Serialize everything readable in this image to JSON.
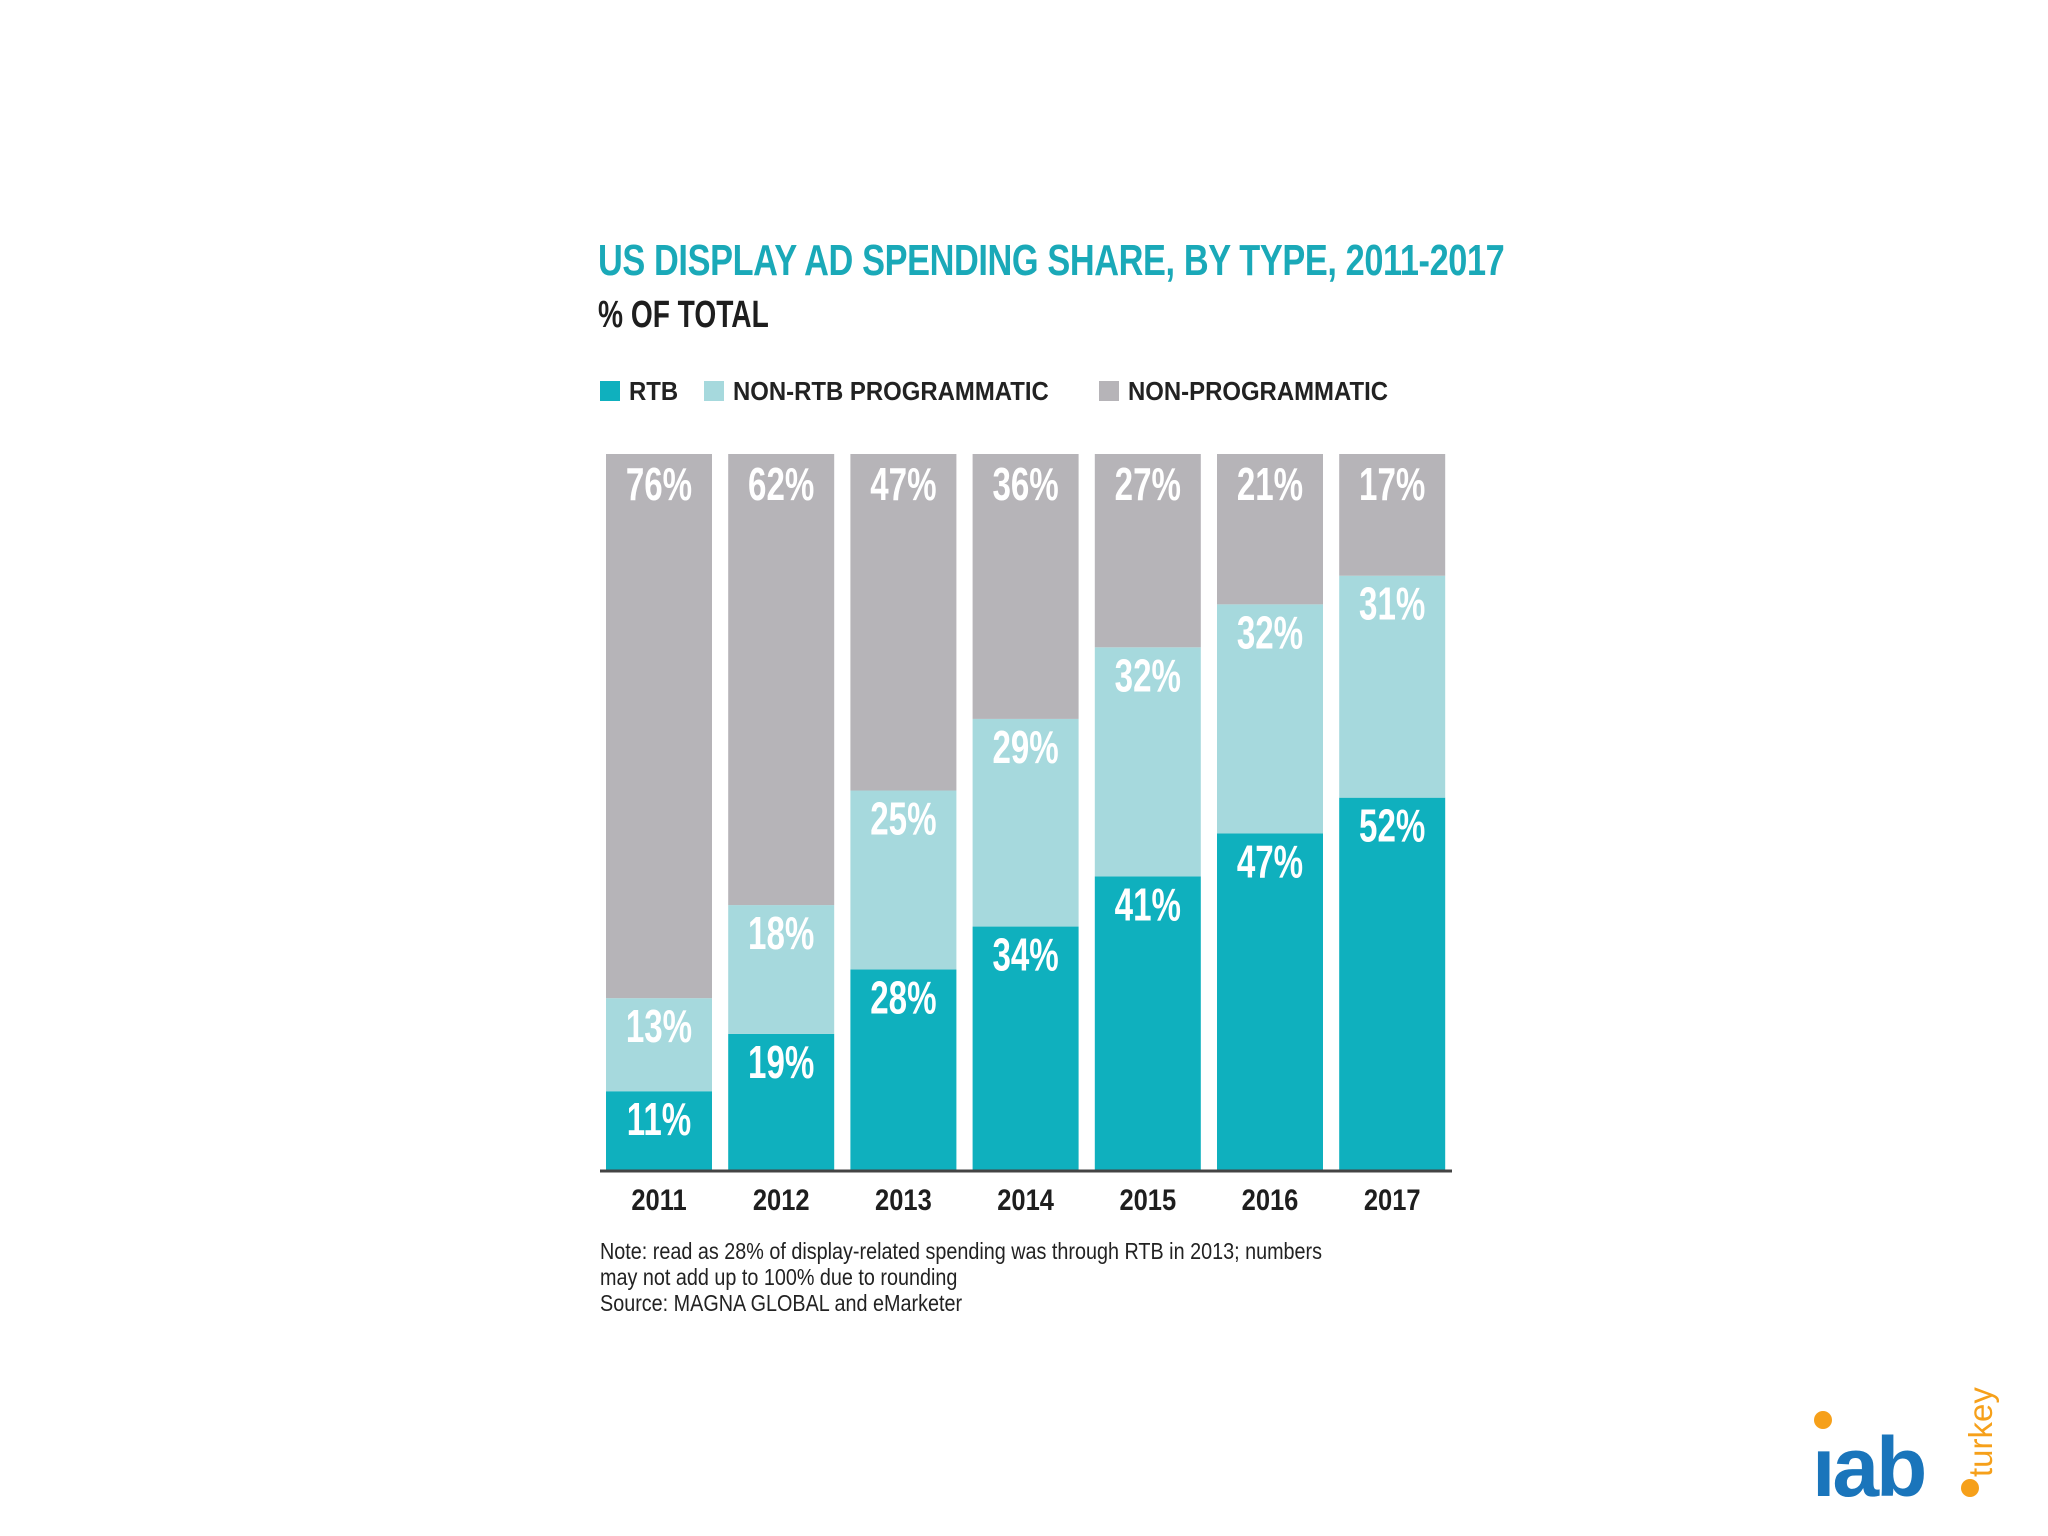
{
  "title": "US DISPLAY AD SPENDING SHARE, BY TYPE, 2011-2017",
  "subtitle": "% OF TOTAL",
  "legend": [
    {
      "label": "RTB",
      "color": "#0fb0be"
    },
    {
      "label": "NON-RTB PROGRAMMATIC",
      "color": "#a6d9dd"
    },
    {
      "label": "NON-PROGRAMMATIC",
      "color": "#b6b4b8"
    }
  ],
  "chart_data": {
    "type": "bar",
    "stacked": true,
    "categories": [
      "2011",
      "2012",
      "2013",
      "2014",
      "2015",
      "2016",
      "2017"
    ],
    "series": [
      {
        "name": "RTB",
        "color": "#0fb0be",
        "values": [
          11,
          19,
          28,
          34,
          41,
          47,
          52
        ],
        "labels": [
          "11%",
          "19%",
          "28%",
          "34%",
          "41%",
          "47%",
          "52%"
        ]
      },
      {
        "name": "NON-RTB PROGRAMMATIC",
        "color": "#a6d9dd",
        "values": [
          13,
          18,
          25,
          29,
          32,
          32,
          31
        ],
        "labels": [
          "13%",
          "18%",
          "25%",
          "29%",
          "32%",
          "32%",
          "31%"
        ]
      },
      {
        "name": "NON-PROGRAMMATIC",
        "color": "#b6b4b8",
        "values": [
          76,
          62,
          47,
          36,
          27,
          21,
          17
        ],
        "labels": [
          "76%",
          "62%",
          "47%",
          "36%",
          "27%",
          "21%",
          "17%"
        ]
      }
    ],
    "ylim": [
      0,
      100
    ],
    "xlabel": "",
    "ylabel": "",
    "grid": false,
    "legend_position": "top-left"
  },
  "note": {
    "line1": "Note: read as 28% of display-related spending was through RTB in 2013; numbers",
    "line2": "may not add up to 100% due to rounding",
    "line3": "Source: MAGNA GLOBAL and eMarketer"
  },
  "logo": {
    "text": "iab",
    "sub": "turkey",
    "color": "#1a75bb",
    "dot_color": "#f6a01a"
  }
}
